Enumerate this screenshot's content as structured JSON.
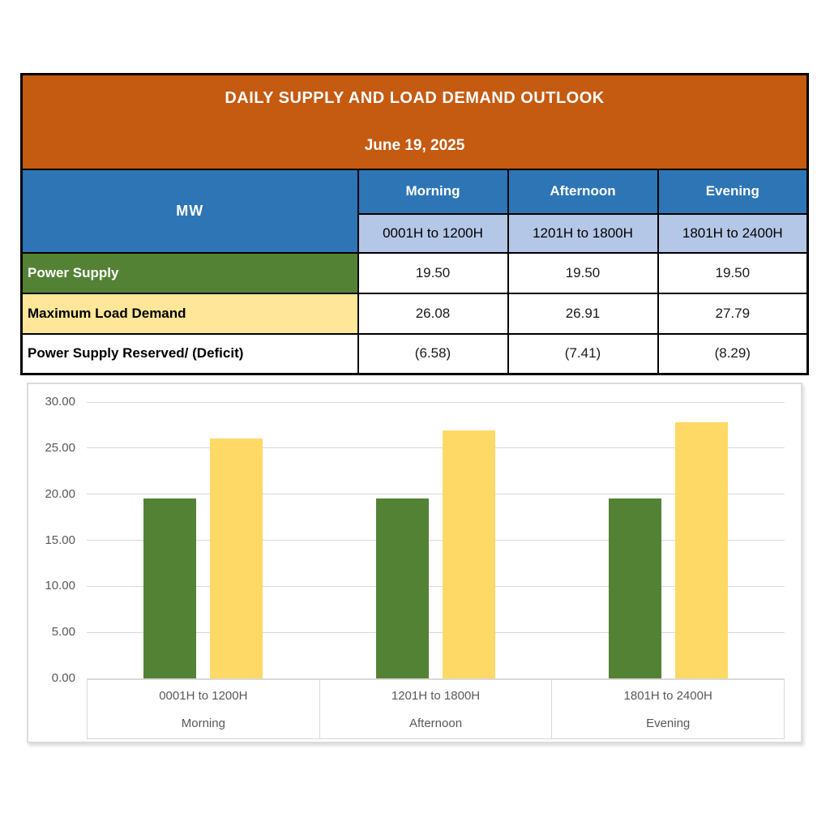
{
  "table": {
    "title": "DAILY SUPPLY AND LOAD DEMAND OUTLOOK",
    "date": "June 19, 2025",
    "unit_label": "MW",
    "columns": [
      {
        "label": "Morning",
        "sub": "0001H to 1200H"
      },
      {
        "label": "Afternoon",
        "sub": "1201H to 1800H"
      },
      {
        "label": "Evening",
        "sub": "1801H to 2400H"
      }
    ],
    "rows": [
      {
        "label": "Power Supply",
        "values": [
          "19.50",
          "19.50",
          "19.50"
        ]
      },
      {
        "label": "Maximum Load Demand",
        "values": [
          "26.08",
          "26.91",
          "27.79"
        ]
      },
      {
        "label": "Power Supply Reserved/ (Deficit)",
        "values": [
          "(6.58)",
          "(7.41)",
          "(8.29)"
        ]
      }
    ],
    "colors": {
      "title_bg": "#C55A11",
      "title_text": "#FFFFFF",
      "column_header_bg": "#2E75B6",
      "subheader_bg": "#B4C7E7",
      "supply_row_bg": "#548235",
      "demand_row_bg": "#FFE699",
      "border": "#000000"
    }
  },
  "chart_data": {
    "type": "bar",
    "categories": [
      "0001H to 1200H",
      "1201H to 1800H",
      "1801H to 2400H"
    ],
    "category_sublabels": [
      "Morning",
      "Afternoon",
      "Evening"
    ],
    "series": [
      {
        "name": "Power Supply",
        "color": "#548235",
        "values": [
          19.5,
          19.5,
          19.5
        ]
      },
      {
        "name": "Maximum Load Demand",
        "color": "#FFD966",
        "values": [
          26.08,
          26.91,
          27.79
        ]
      }
    ],
    "title": "",
    "xlabel": "",
    "ylabel": "",
    "ylim": [
      0,
      30
    ],
    "ytick_step": 5,
    "ytick_labels": [
      "0.00",
      "5.00",
      "10.00",
      "15.00",
      "20.00",
      "25.00",
      "30.00"
    ],
    "grid": true,
    "legend_position": "none",
    "gridline_color": "#D9D9D9",
    "axis_text_color": "#595959"
  }
}
